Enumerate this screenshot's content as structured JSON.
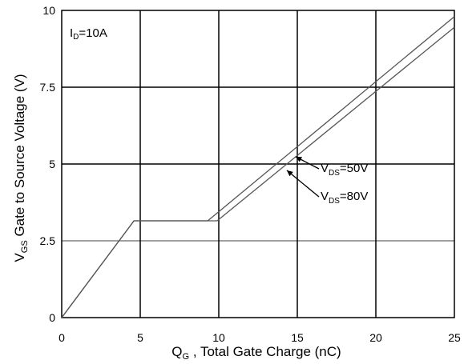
{
  "chart_data": {
    "type": "line",
    "xlabel": {
      "main": "Q",
      "sub": "G",
      "rest": " , Total Gate Charge (nC)"
    },
    "ylabel": {
      "main": "V",
      "sub": "GS",
      "rest": "   Gate to Source Voltage (V)"
    },
    "condition": {
      "main": "I",
      "sub": "D",
      "rest": "=10A"
    },
    "xlim": [
      0,
      25
    ],
    "ylim": [
      0,
      10
    ],
    "x_ticks": [
      "0",
      "5",
      "10",
      "15",
      "20",
      "25"
    ],
    "y_ticks": [
      "0",
      "2.5",
      "5",
      "7.5",
      "10"
    ],
    "grid": true,
    "series": [
      {
        "name": "VDS=50V",
        "label": {
          "main": "V",
          "sub": "DS",
          "rest": "=50V"
        },
        "points": [
          [
            0,
            0
          ],
          [
            4.6,
            3.15
          ],
          [
            9.3,
            3.15
          ],
          [
            25,
            9.8
          ]
        ]
      },
      {
        "name": "VDS=80V",
        "label": {
          "main": "V",
          "sub": "DS",
          "rest": "=80V"
        },
        "points": [
          [
            0,
            0
          ],
          [
            4.6,
            3.15
          ],
          [
            9.9,
            3.15
          ],
          [
            25,
            9.45
          ]
        ]
      }
    ],
    "colors": {
      "line": "#555555",
      "grid": "#000000",
      "axis": "#000000"
    }
  }
}
